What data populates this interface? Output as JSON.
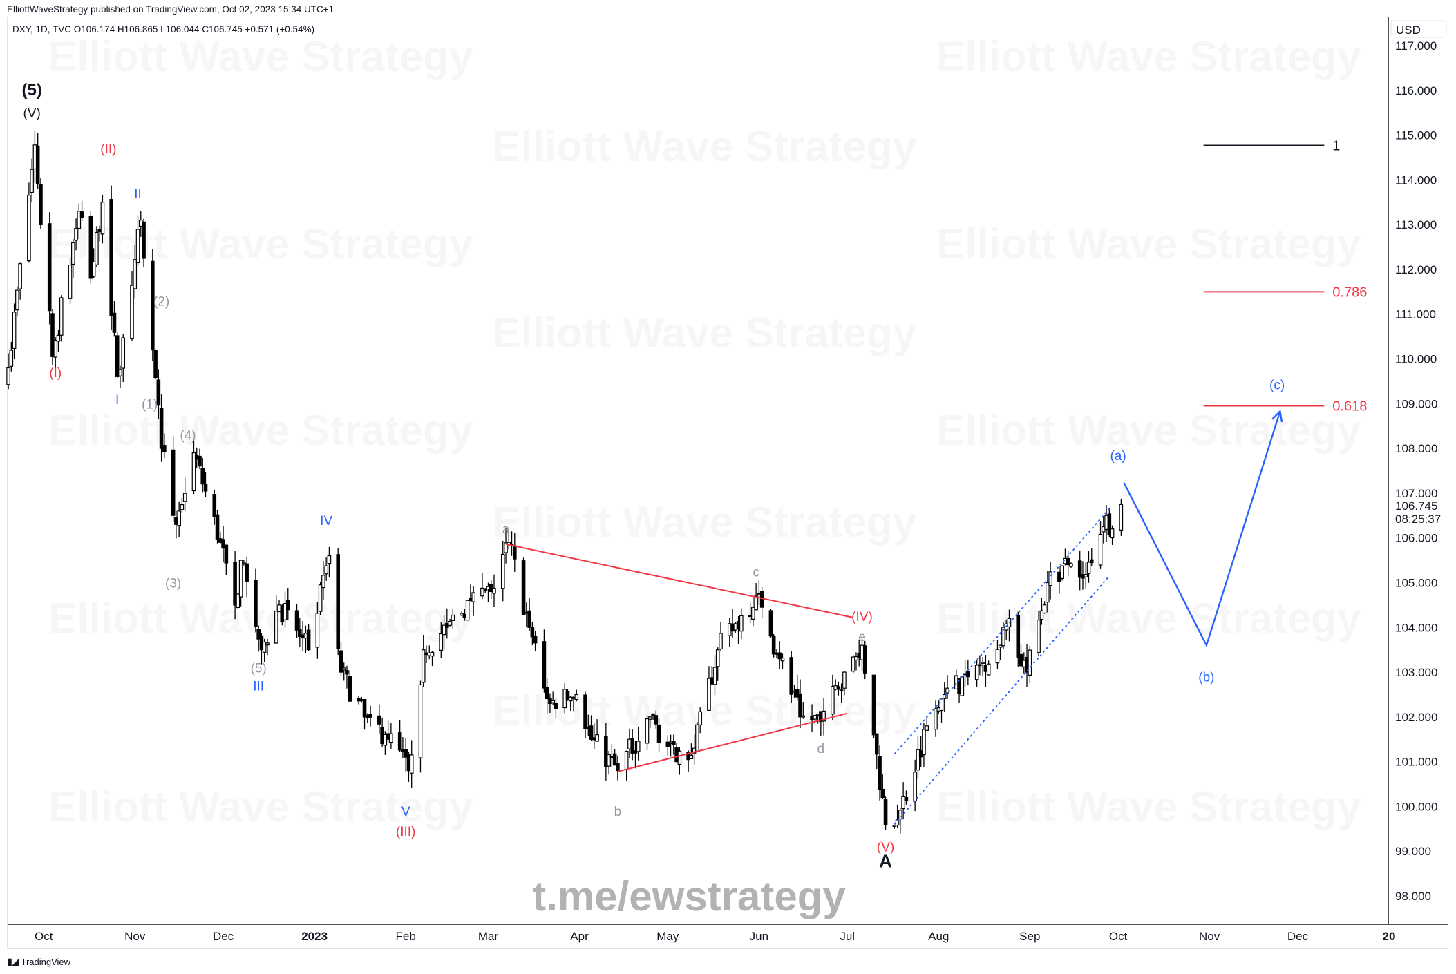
{
  "header": {
    "published": "ElliottWaveStrategy published on TradingView.com, Oct 02, 2023 15:34 UTC+1",
    "legend": "DXY, 1D, TVC  O106.174  H106.865  L106.044  C106.745  +0.571 (+0.54%)"
  },
  "watermark": {
    "text": "Elliott Wave Strategy",
    "link": "t.me/ewstrategy"
  },
  "footer": {
    "brand": "TradingView",
    "logo_mark": "17"
  },
  "colors": {
    "red": "#f23645",
    "blue": "#2962ff",
    "gray": "#9598a1",
    "black": "#131722"
  },
  "chart_data": {
    "type": "candlestick",
    "symbol": "DXY",
    "interval": "1D",
    "currency": "USD",
    "ylim": [
      97.5,
      117.3
    ],
    "y_ticks": [
      "117.000",
      "116.000",
      "115.000",
      "114.000",
      "113.000",
      "112.000",
      "111.000",
      "110.000",
      "109.000",
      "108.000",
      "107.000",
      "106.000",
      "105.000",
      "104.000",
      "103.000",
      "102.000",
      "101.000",
      "100.000",
      "99.000",
      "98.000"
    ],
    "last_price": "106.745",
    "countdown": "08:25:37",
    "x_ticks": [
      {
        "label": "Oct",
        "date": "2022-10-01",
        "bold": false
      },
      {
        "label": "Nov",
        "date": "2022-11-01",
        "bold": false
      },
      {
        "label": "Dec",
        "date": "2022-12-01",
        "bold": false
      },
      {
        "label": "2023",
        "date": "2023-01-01",
        "bold": true
      },
      {
        "label": "Feb",
        "date": "2023-02-01",
        "bold": false
      },
      {
        "label": "Mar",
        "date": "2023-03-01",
        "bold": false
      },
      {
        "label": "Apr",
        "date": "2023-04-01",
        "bold": false
      },
      {
        "label": "May",
        "date": "2023-05-01",
        "bold": false
      },
      {
        "label": "Jun",
        "date": "2023-06-01",
        "bold": false
      },
      {
        "label": "Jul",
        "date": "2023-07-01",
        "bold": false
      },
      {
        "label": "Aug",
        "date": "2023-08-01",
        "bold": false
      },
      {
        "label": "Sep",
        "date": "2023-09-01",
        "bold": false
      },
      {
        "label": "Oct",
        "date": "2023-10-01",
        "bold": false
      },
      {
        "label": "Nov",
        "date": "2023-11-01",
        "bold": false
      },
      {
        "label": "Dec",
        "date": "2023-12-01",
        "bold": false
      },
      {
        "label": "20",
        "date": "2024-01-01",
        "bold": true
      }
    ],
    "price_path": [
      [
        "2022-09-19",
        109.8
      ],
      [
        "2022-09-28",
        114.78
      ],
      [
        "2022-10-04",
        110.05
      ],
      [
        "2022-10-13",
        113.3
      ],
      [
        "2022-10-17",
        111.8
      ],
      [
        "2022-10-21",
        113.5
      ],
      [
        "2022-10-26",
        109.6
      ],
      [
        "2022-11-03",
        113.1
      ],
      [
        "2022-11-07",
        110.2
      ],
      [
        "2022-11-10",
        108.0
      ],
      [
        "2022-11-15",
        106.3
      ],
      [
        "2022-11-21",
        107.9
      ],
      [
        "2022-11-30",
        105.9
      ],
      [
        "2022-12-05",
        104.5
      ],
      [
        "2022-12-07",
        105.5
      ],
      [
        "2022-12-14",
        103.5
      ],
      [
        "2022-12-20",
        104.5
      ],
      [
        "2022-12-30",
        103.5
      ],
      [
        "2023-01-06",
        105.6
      ],
      [
        "2023-01-10",
        103.0
      ],
      [
        "2023-01-18",
        102.0
      ],
      [
        "2023-01-26",
        101.5
      ],
      [
        "2023-02-02",
        100.8
      ],
      [
        "2023-02-07",
        103.5
      ],
      [
        "2023-02-15",
        104.0
      ],
      [
        "2023-02-23",
        104.6
      ],
      [
        "2023-03-02",
        104.8
      ],
      [
        "2023-03-08",
        105.9
      ],
      [
        "2023-03-15",
        104.0
      ],
      [
        "2023-03-22",
        102.3
      ],
      [
        "2023-03-31",
        102.5
      ],
      [
        "2023-04-05",
        101.5
      ],
      [
        "2023-04-14",
        100.8
      ],
      [
        "2023-04-25",
        102.0
      ],
      [
        "2023-05-04",
        101.0
      ],
      [
        "2023-05-10",
        101.3
      ],
      [
        "2023-05-18",
        103.5
      ],
      [
        "2023-05-31",
        104.7
      ],
      [
        "2023-06-08",
        103.3
      ],
      [
        "2023-06-15",
        102.0
      ],
      [
        "2023-06-22",
        101.9
      ],
      [
        "2023-06-30",
        103.0
      ],
      [
        "2023-07-06",
        103.6
      ],
      [
        "2023-07-10",
        101.6
      ],
      [
        "2023-07-14",
        99.6
      ],
      [
        "2023-07-18",
        99.7
      ],
      [
        "2023-07-28",
        101.8
      ],
      [
        "2023-08-03",
        102.5
      ],
      [
        "2023-08-11",
        102.9
      ],
      [
        "2023-08-22",
        103.6
      ],
      [
        "2023-08-25",
        104.2
      ],
      [
        "2023-08-31",
        103.0
      ],
      [
        "2023-09-07",
        105.0
      ],
      [
        "2023-09-14",
        105.4
      ],
      [
        "2023-09-19",
        105.1
      ],
      [
        "2023-09-27",
        106.5
      ],
      [
        "2023-09-29",
        106.2
      ],
      [
        "2023-10-02",
        106.745
      ]
    ],
    "last_candle": {
      "date": "2023-10-02",
      "open": 106.174,
      "high": 106.865,
      "low": 106.044,
      "close": 106.745
    },
    "wave_labels": [
      {
        "text": "(5)",
        "date": "2022-09-27",
        "price": 116.0,
        "color": "black",
        "bold": true
      },
      {
        "text": "(V)",
        "date": "2022-09-27",
        "price": 115.5,
        "color": "black"
      },
      {
        "text": "(II)",
        "date": "2022-10-23",
        "price": 114.7,
        "color": "red"
      },
      {
        "text": "II",
        "date": "2022-11-02",
        "price": 113.7,
        "color": "blue"
      },
      {
        "text": "(2)",
        "date": "2022-11-10",
        "price": 111.3,
        "color": "gray"
      },
      {
        "text": "(I)",
        "date": "2022-10-05",
        "price": 109.7,
        "color": "red"
      },
      {
        "text": "I",
        "date": "2022-10-26",
        "price": 109.1,
        "color": "blue"
      },
      {
        "text": "(1)",
        "date": "2022-11-06",
        "price": 109.0,
        "color": "gray"
      },
      {
        "text": "(4)",
        "date": "2022-11-19",
        "price": 108.3,
        "color": "gray"
      },
      {
        "text": "(3)",
        "date": "2022-11-14",
        "price": 105.0,
        "color": "gray"
      },
      {
        "text": "IV",
        "date": "2023-01-05",
        "price": 106.4,
        "color": "blue"
      },
      {
        "text": "(5)",
        "date": "2022-12-13",
        "price": 103.1,
        "color": "gray"
      },
      {
        "text": "III",
        "date": "2022-12-13",
        "price": 102.7,
        "color": "blue"
      },
      {
        "text": "V",
        "date": "2023-02-01",
        "price": 99.9,
        "color": "blue"
      },
      {
        "text": "(III)",
        "date": "2023-02-01",
        "price": 99.45,
        "color": "red"
      },
      {
        "text": "a",
        "date": "2023-03-07",
        "price": 106.2,
        "color": "gray"
      },
      {
        "text": "b",
        "date": "2023-04-14",
        "price": 99.9,
        "color": "gray"
      },
      {
        "text": "c",
        "date": "2023-05-31",
        "price": 105.25,
        "color": "gray"
      },
      {
        "text": "d",
        "date": "2023-06-22",
        "price": 101.3,
        "color": "gray"
      },
      {
        "text": "(IV)",
        "date": "2023-07-06",
        "price": 104.25,
        "color": "red"
      },
      {
        "text": "e",
        "date": "2023-07-06",
        "price": 103.8,
        "color": "gray"
      },
      {
        "text": "(V)",
        "date": "2023-07-14",
        "price": 99.1,
        "color": "red"
      },
      {
        "text": "A",
        "date": "2023-07-14",
        "price": 98.75,
        "color": "black",
        "bold": true,
        "big": true
      },
      {
        "text": "(a)",
        "date": "2023-10-01",
        "price": 107.85,
        "color": "blue"
      },
      {
        "text": "(b)",
        "date": "2023-10-31",
        "price": 102.9,
        "color": "blue"
      },
      {
        "text": "(c)",
        "date": "2023-11-24",
        "price": 109.43,
        "color": "blue"
      }
    ],
    "triangle_lines": [
      [
        [
          "2023-03-07",
          105.86
        ],
        [
          "2023-07-03",
          104.22
        ]
      ],
      [
        [
          "2023-04-14",
          100.78
        ],
        [
          "2023-07-01",
          102.08
        ]
      ]
    ],
    "channel_lines": [
      [
        [
          "2023-07-17",
          101.17
        ],
        [
          "2023-09-28",
          106.65
        ]
      ],
      [
        [
          "2023-07-17",
          99.6
        ],
        [
          "2023-09-28",
          105.15
        ]
      ]
    ],
    "projection_path": [
      [
        "2023-10-03",
        107.23
      ],
      [
        "2023-10-31",
        103.6
      ],
      [
        "2023-11-25",
        108.83
      ]
    ],
    "fib_levels": [
      {
        "label": "1",
        "price": 114.77,
        "color": "black",
        "from": "2023-10-30",
        "to": "2023-12-10"
      },
      {
        "label": "0.786",
        "price": 111.5,
        "color": "red",
        "from": "2023-10-30",
        "to": "2023-12-10"
      },
      {
        "label": "0.618",
        "price": 108.95,
        "color": "red",
        "from": "2023-10-30",
        "to": "2023-12-10"
      }
    ]
  }
}
